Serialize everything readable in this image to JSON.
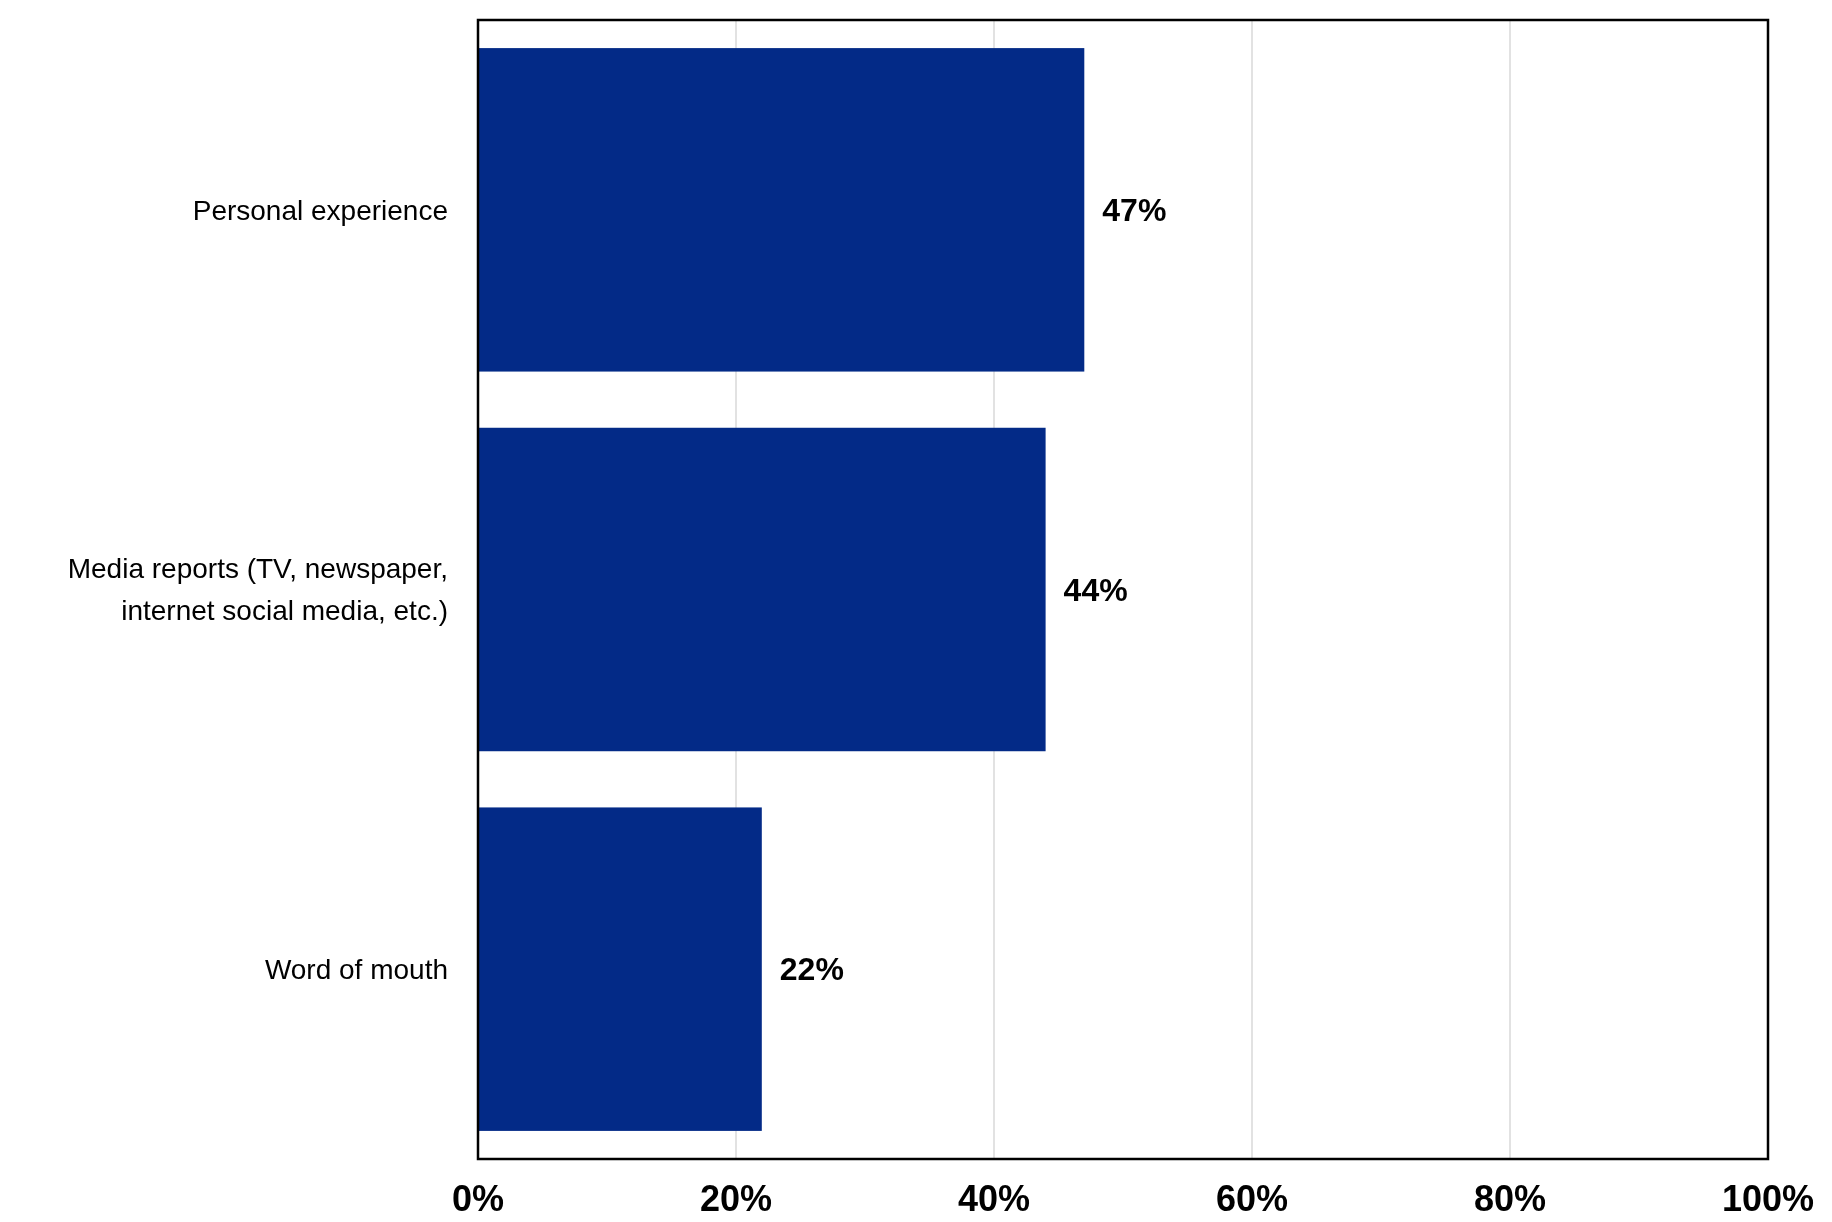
{
  "chart_data": {
    "type": "bar",
    "orientation": "horizontal",
    "categories": [
      "Personal experience",
      "Media reports (TV, newspaper, internet social media, etc.)",
      "Word of mouth"
    ],
    "values": [
      47,
      44,
      22
    ],
    "color": "#032a87",
    "value_labels": [
      "47%",
      "44%",
      "22%"
    ],
    "xlim": [
      0,
      100
    ],
    "xticks": [
      {
        "value": 0,
        "label": "0%"
      },
      {
        "value": 20,
        "label": "20%"
      },
      {
        "value": 40,
        "label": "40%"
      },
      {
        "value": 60,
        "label": "60%"
      },
      {
        "value": 80,
        "label": "80%"
      },
      {
        "value": 100,
        "label": "100%"
      }
    ],
    "grid": "x"
  }
}
